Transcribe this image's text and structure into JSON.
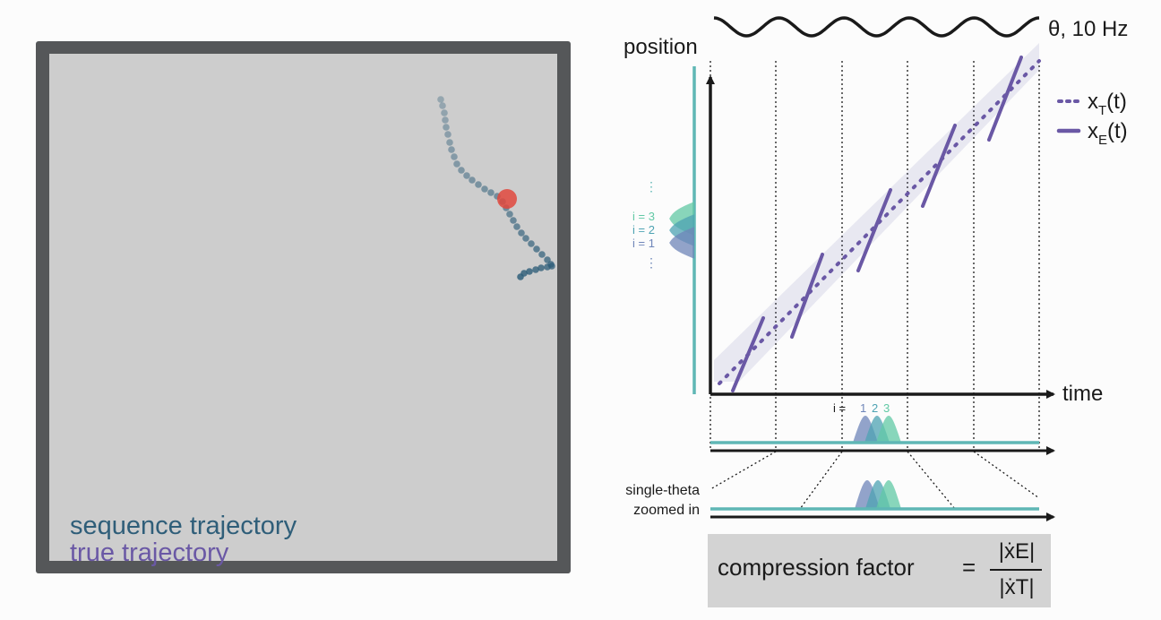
{
  "arena": {
    "legend_sequence": "sequence trajectory",
    "legend_true": "true trajectory"
  },
  "plot": {
    "theta_label": "θ, 10 Hz",
    "y_axis_label": "position",
    "x_axis_label": "time",
    "legend_true": {
      "symbol": "x",
      "sub": "T",
      "arg": "(t)"
    },
    "legend_expected": {
      "symbol": "x",
      "sub": "E",
      "arg": "(t)"
    },
    "i_labels": [
      "i = 3",
      "i = 2",
      "i = 1"
    ],
    "i_row_prefix": "i =",
    "i_row_values": [
      "1",
      "2",
      "3"
    ],
    "zoom_label_line1": "single-theta",
    "zoom_label_line2": "zoomed in"
  },
  "formula": {
    "label": "compression factor",
    "equals": "=",
    "numerator": "|ẋE|",
    "denominator": "|ẋT|"
  },
  "colors": {
    "sequence": "#2f5e79",
    "true": "#6a58a5",
    "teal_axis": "#5fb7b5",
    "bump_green": "#62c9a5",
    "bump_teal": "#4ea3b3",
    "bump_blue": "#6f86b9",
    "red_marker": "#e0483d"
  }
}
